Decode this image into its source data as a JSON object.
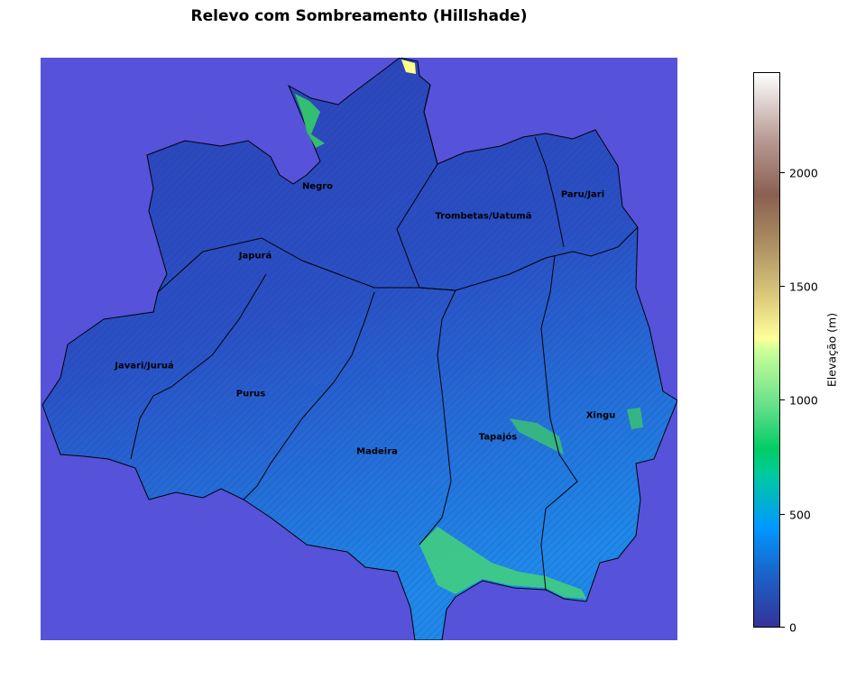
{
  "title": "Relevo com Sombreamento (Hillshade)",
  "map": {
    "background_color": "#5652d9",
    "land_color_low": "#2b3fb0",
    "land_color_mid": "#1f7fe0",
    "highland_color": "#33cc66",
    "peak_color": "#ffff88",
    "basins": [
      {
        "id": "negro",
        "name": "Negro"
      },
      {
        "id": "trombetas",
        "name": "Trombetas/Uatumã"
      },
      {
        "id": "paru",
        "name": "Paru/Jari"
      },
      {
        "id": "japura",
        "name": "Japurá"
      },
      {
        "id": "javari",
        "name": "Javari/Juruá"
      },
      {
        "id": "purus",
        "name": "Purus"
      },
      {
        "id": "madeira",
        "name": "Madeira"
      },
      {
        "id": "tapajos",
        "name": "Tapajós"
      },
      {
        "id": "xingu",
        "name": "Xingu"
      }
    ]
  },
  "colorbar": {
    "label": "Elevação (m)",
    "min": 0,
    "max": 2450,
    "ticks": [
      {
        "value": 0,
        "label": "0"
      },
      {
        "value": 500,
        "label": "500"
      },
      {
        "value": 1000,
        "label": "1000"
      },
      {
        "value": 1500,
        "label": "1500"
      },
      {
        "value": 2000,
        "label": "2000"
      }
    ]
  }
}
